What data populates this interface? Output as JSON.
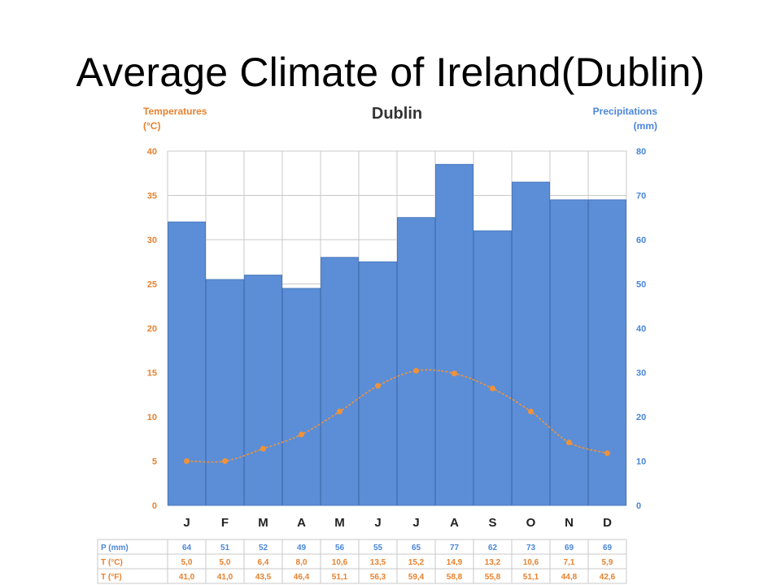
{
  "slide": {
    "title": "Average Climate of Ireland(Dublin)"
  },
  "chart_data": {
    "type": "bar+line",
    "title": "Dublin",
    "left_axis": {
      "label_line1": "Temperatures",
      "label_line2": "(°C)",
      "range": [
        0,
        40
      ],
      "ticks": [
        0,
        5,
        10,
        15,
        20,
        25,
        30,
        35,
        40
      ]
    },
    "right_axis": {
      "label_line1": "Precipitations",
      "label_line2": "(mm)",
      "range": [
        0,
        80
      ],
      "ticks": [
        0,
        10,
        20,
        30,
        40,
        50,
        60,
        70,
        80
      ]
    },
    "categories": [
      "J",
      "F",
      "M",
      "A",
      "M",
      "J",
      "J",
      "A",
      "S",
      "O",
      "N",
      "D"
    ],
    "precipitation_mm": [
      64,
      51,
      52,
      49,
      56,
      55,
      65,
      77,
      62,
      73,
      69,
      69
    ],
    "temperature_c": [
      5.0,
      5.0,
      6.4,
      8.0,
      10.6,
      13.5,
      15.2,
      14.9,
      13.2,
      10.6,
      7.1,
      5.9
    ],
    "grid": true,
    "colors": {
      "bars": "#5b8ed6",
      "bar_edge": "#4a78bd",
      "line": "#f0923a",
      "temp_axis": "#e8822f",
      "precip_axis": "#4a86d8"
    },
    "table": {
      "row_labels": [
        "P (mm)",
        "T (°C)",
        "T (°F)"
      ],
      "rows": [
        [
          "64",
          "51",
          "52",
          "49",
          "56",
          "55",
          "65",
          "77",
          "62",
          "73",
          "69",
          "69"
        ],
        [
          "5,0",
          "5,0",
          "6,4",
          "8,0",
          "10,6",
          "13,5",
          "15,2",
          "14,9",
          "13,2",
          "10,6",
          "7,1",
          "5,9"
        ],
        [
          "41,0",
          "41,0",
          "43,5",
          "46,4",
          "51,1",
          "56,3",
          "59,4",
          "58,8",
          "55,8",
          "51,1",
          "44,8",
          "42,6"
        ]
      ]
    }
  }
}
